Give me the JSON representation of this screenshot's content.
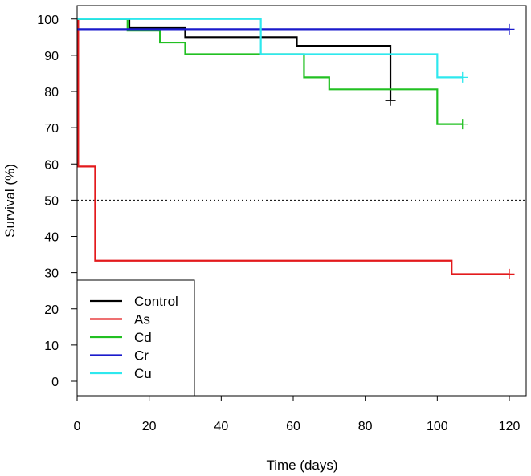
{
  "chart_data": {
    "type": "line",
    "xlabel": "Time (days)",
    "ylabel": "Survival (%)",
    "xlim": [
      0,
      125
    ],
    "ylim": [
      -3.5,
      105
    ],
    "xticks": [
      0,
      20,
      40,
      60,
      80,
      100,
      120
    ],
    "yticks": [
      0,
      10,
      20,
      30,
      40,
      50,
      60,
      70,
      80,
      90,
      100
    ],
    "reference_line": {
      "y": 50,
      "style": "dotted"
    },
    "legend": {
      "placement": "bottom-left"
    },
    "series": [
      {
        "name": "Control",
        "color": "#000000",
        "steps": [
          [
            0,
            100
          ],
          [
            14.5,
            97.5
          ],
          [
            30,
            95
          ],
          [
            61,
            92.6
          ],
          [
            87,
            77.5
          ]
        ],
        "end": 87,
        "censor": [
          87,
          77.5
        ]
      },
      {
        "name": "As",
        "color": "#e31a1c",
        "steps": [
          [
            0,
            100
          ],
          [
            0.3,
            59.3
          ],
          [
            5,
            33.3
          ],
          [
            104,
            29.6
          ]
        ],
        "end": 120,
        "censor": [
          120,
          29.6
        ]
      },
      {
        "name": "Cd",
        "color": "#22c022",
        "steps": [
          [
            0,
            100
          ],
          [
            14,
            96.8
          ],
          [
            23,
            93.5
          ],
          [
            30,
            90.3
          ],
          [
            63,
            83.9
          ],
          [
            70,
            80.6
          ],
          [
            100,
            71
          ]
        ],
        "end": 107,
        "censor": [
          107,
          71
        ]
      },
      {
        "name": "Cr",
        "color": "#1a1acc",
        "steps": [
          [
            0,
            97.2
          ]
        ],
        "end": 120,
        "censor": [
          120,
          97.2
        ]
      },
      {
        "name": "Cu",
        "color": "#2ee8ee",
        "steps": [
          [
            0,
            100
          ],
          [
            51,
            90.3
          ],
          [
            100,
            83.9
          ]
        ],
        "end": 107,
        "censor": [
          107,
          83.9
        ]
      }
    ]
  }
}
